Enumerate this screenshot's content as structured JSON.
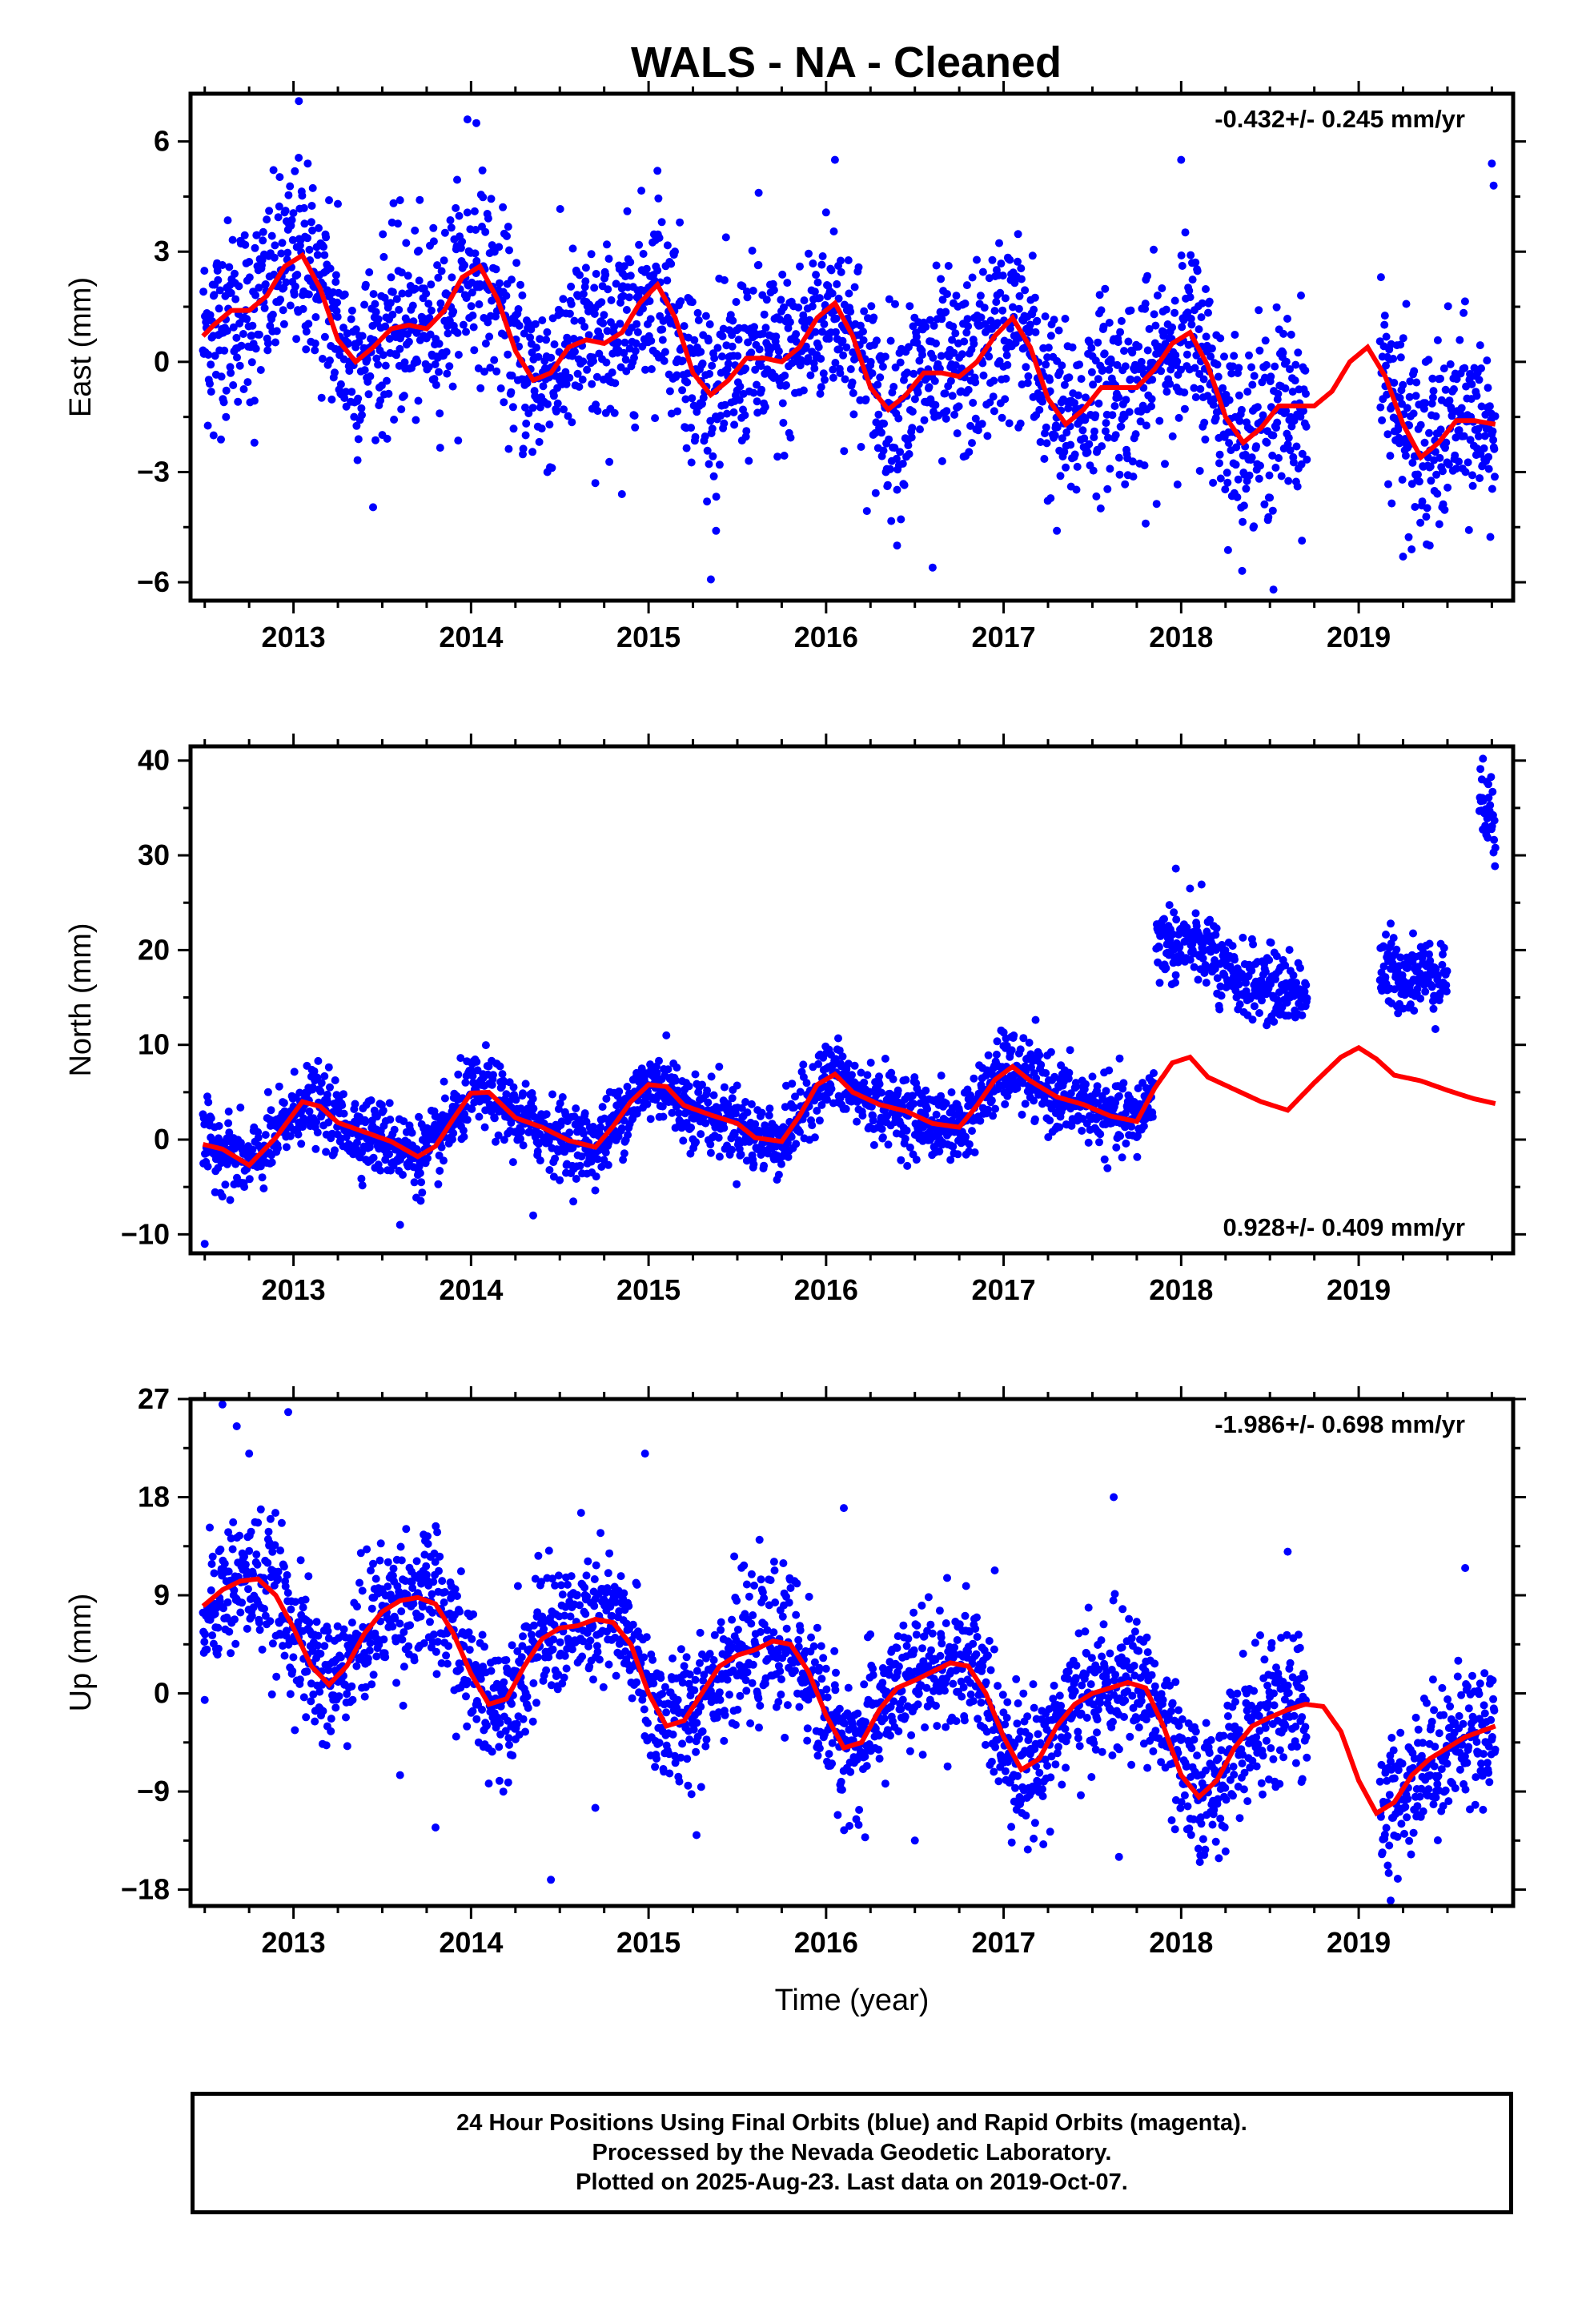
{
  "figure": {
    "title": "WALS  - NA - Cleaned",
    "footer_lines": [
      "24 Hour Positions Using Final Orbits (blue) and Rapid Orbits (magenta).",
      "Processed by the Nevada Geodetic Laboratory.",
      "Plotted on 2025-Aug-23. Last data on 2019-Oct-07."
    ],
    "colors": {
      "points": "#0000ff",
      "fit": "#ff0000",
      "frame": "#000000"
    }
  },
  "chart_data": [
    {
      "type": "scatter",
      "id": "east",
      "ylabel": "East (mm)",
      "xlabel": "",
      "xlim": [
        2012.42,
        2019.87
      ],
      "ylim": [
        -6.5,
        7.3
      ],
      "xticks": [
        2013,
        2014,
        2015,
        2016,
        2017,
        2018,
        2019
      ],
      "yticks": [
        -6,
        -3,
        0,
        3,
        6
      ],
      "rate_label": "-0.432+/- 0.245 mm/yr",
      "rate_position": "top-right",
      "series": [
        {
          "role": "daily-positions",
          "segments": [
            [
              2012.49,
              2018.71
            ],
            [
              2019.12,
              2019.77
            ]
          ],
          "points": [
            [
              2012.55,
              -2.0
            ],
            [
              2012.62,
              -1.5
            ],
            [
              2012.78,
              -2.2
            ],
            [
              2013.03,
              7.1
            ],
            [
              2013.08,
              5.4
            ],
            [
              2013.2,
              4.4
            ],
            [
              2013.25,
              4.3
            ],
            [
              2013.6,
              4.4
            ],
            [
              2013.98,
              6.6
            ],
            [
              2014.03,
              6.5
            ],
            [
              2014.43,
              -3.0
            ],
            [
              2014.7,
              -3.3
            ],
            [
              2014.85,
              -3.6
            ],
            [
              2015.05,
              5.2
            ],
            [
              2015.38,
              -4.6
            ],
            [
              2015.62,
              4.6
            ],
            [
              2016.05,
              5.5
            ],
            [
              2016.4,
              -5.0
            ],
            [
              2016.6,
              -5.6
            ],
            [
              2017.3,
              -4.6
            ],
            [
              2017.8,
              -4.4
            ],
            [
              2018.0,
              5.5
            ],
            [
              2018.52,
              -6.2
            ],
            [
              2019.25,
              -5.3
            ],
            [
              2019.4,
              -5.0
            ],
            [
              2019.75,
              5.4
            ],
            [
              2019.76,
              4.8
            ]
          ],
          "description_of_bands": "daily solution scatter approx. +/-2.5 mm around the seasonal fit; data gap 2018.71-2019.12"
        },
        {
          "role": "seasonal-fit",
          "x": [
            2012.49,
            2012.55,
            2012.65,
            2012.75,
            2012.85,
            2012.95,
            2013.05,
            2013.15,
            2013.25,
            2013.35,
            2013.45,
            2013.55,
            2013.65,
            2013.75,
            2013.85,
            2013.95,
            2014.05,
            2014.15,
            2014.25,
            2014.35,
            2014.45,
            2014.55,
            2014.65,
            2014.75,
            2014.85,
            2014.95,
            2015.05,
            2015.15,
            2015.25,
            2015.35,
            2015.45,
            2015.55,
            2015.65,
            2015.75,
            2015.85,
            2015.95,
            2016.05,
            2016.15,
            2016.25,
            2016.35,
            2016.45,
            2016.55,
            2016.65,
            2016.75,
            2016.85,
            2016.95,
            2017.05,
            2017.15,
            2017.25,
            2017.35,
            2017.45,
            2017.55,
            2017.65,
            2017.75,
            2017.85,
            2017.95,
            2018.05,
            2018.15,
            2018.25,
            2018.35,
            2018.45,
            2018.55,
            2018.65,
            2018.75,
            2018.85,
            2018.95,
            2019.05,
            2019.15,
            2019.25,
            2019.35,
            2019.45,
            2019.55,
            2019.65,
            2019.77
          ],
          "y": [
            0.7,
            1.0,
            1.4,
            1.4,
            1.8,
            2.6,
            2.9,
            2.0,
            0.6,
            0.0,
            0.4,
            0.9,
            1.0,
            0.9,
            1.4,
            2.3,
            2.6,
            1.7,
            0.3,
            -0.5,
            -0.3,
            0.4,
            0.6,
            0.5,
            0.8,
            1.6,
            2.1,
            1.2,
            -0.3,
            -0.9,
            -0.5,
            0.1,
            0.1,
            0.0,
            0.4,
            1.2,
            1.6,
            0.7,
            -0.7,
            -1.3,
            -0.9,
            -0.3,
            -0.3,
            -0.4,
            0.0,
            0.7,
            1.2,
            0.4,
            -1.0,
            -1.7,
            -1.3,
            -0.7,
            -0.7,
            -0.7,
            -0.2,
            0.5,
            0.8,
            -0.1,
            -1.5,
            -2.2,
            -1.8,
            -1.2,
            -1.2,
            -1.2,
            -0.8,
            0.0,
            0.4,
            -0.4,
            -1.7,
            -2.6,
            -2.2,
            -1.6,
            -1.6,
            -1.7
          ]
        }
      ]
    },
    {
      "type": "scatter",
      "id": "north",
      "ylabel": "North (mm)",
      "xlabel": "",
      "xlim": [
        2012.42,
        2019.87
      ],
      "ylim": [
        -12.0,
        41.5
      ],
      "xticks": [
        2013,
        2014,
        2015,
        2016,
        2017,
        2018,
        2019
      ],
      "yticks": [
        -10,
        0,
        10,
        20,
        30,
        40
      ],
      "rate_label": "0.928+/- 0.409 mm/yr",
      "rate_position": "bottom-right",
      "series": [
        {
          "role": "daily-positions",
          "segments": [
            [
              2012.49,
              2017.85
            ],
            [
              2017.86,
              2018.71
            ],
            [
              2019.12,
              2019.5
            ],
            [
              2019.68,
              2019.77
            ]
          ],
          "points": [
            [
              2012.5,
              -11.0
            ],
            [
              2013.0,
              3.5
            ],
            [
              2013.6,
              -9.0
            ],
            [
              2014.35,
              -8.0
            ],
            [
              2015.1,
              11.0
            ],
            [
              2016.05,
              8.5
            ],
            [
              2017.0,
              11.3
            ],
            [
              2017.97,
              28.6
            ],
            [
              2018.05,
              26.5
            ],
            [
              2019.18,
              22.8
            ],
            [
              2019.7,
              40.2
            ],
            [
              2019.73,
              37.5
            ],
            [
              2019.77,
              30.8
            ]
          ],
          "description_of_bands": "pre-2017.85 scatter ~ +/-3 mm around the fit; 2017.85-2018.71 offset cluster 13-26 mm; 2019.12-2019.5 cluster 15-21 mm; 2019.68-2019.77 cluster 30-40 mm"
        },
        {
          "role": "seasonal-fit",
          "x": [
            2012.49,
            2012.6,
            2012.75,
            2012.9,
            2013.05,
            2013.15,
            2013.25,
            2013.4,
            2013.55,
            2013.7,
            2013.8,
            2013.9,
            2014.0,
            2014.1,
            2014.25,
            2014.4,
            2014.55,
            2014.7,
            2014.8,
            2014.9,
            2015.0,
            2015.1,
            2015.2,
            2015.35,
            2015.5,
            2015.6,
            2015.75,
            2015.85,
            2015.95,
            2016.05,
            2016.15,
            2016.3,
            2016.45,
            2016.6,
            2016.75,
            2016.85,
            2016.95,
            2017.05,
            2017.15,
            2017.3,
            2017.45,
            2017.6,
            2017.75,
            2017.85,
            2017.95,
            2018.05,
            2018.15,
            2018.3,
            2018.45,
            2018.6,
            2018.75,
            2018.9,
            2019.0,
            2019.1,
            2019.2,
            2019.35,
            2019.5,
            2019.65,
            2019.77
          ],
          "y": [
            -0.5,
            -1.0,
            -2.7,
            0.2,
            4.0,
            3.5,
            1.8,
            0.8,
            -0.2,
            -1.8,
            -0.7,
            2.2,
            4.9,
            5.0,
            2.3,
            1.3,
            -0.1,
            -0.8,
            1.4,
            4.0,
            5.8,
            5.6,
            3.6,
            2.6,
            1.7,
            0.2,
            -0.2,
            2.5,
            5.8,
            6.9,
            5.0,
            3.7,
            3.0,
            1.7,
            1.3,
            3.6,
            6.3,
            7.7,
            6.2,
            4.5,
            3.7,
            2.5,
            1.9,
            5.4,
            8.1,
            8.7,
            6.6,
            5.3,
            4.0,
            3.1,
            6.0,
            8.7,
            9.7,
            8.5,
            6.8,
            6.2,
            5.2,
            4.3,
            3.8
          ]
        }
      ]
    },
    {
      "type": "scatter",
      "id": "up",
      "ylabel": "Up (mm)",
      "xlabel": "Time (year)",
      "xlim": [
        2012.42,
        2019.87
      ],
      "ylim": [
        -19.5,
        27.0
      ],
      "xticks": [
        2013,
        2014,
        2015,
        2016,
        2017,
        2018,
        2019
      ],
      "yticks": [
        -18,
        -9,
        0,
        9,
        18,
        27
      ],
      "rate_label": "-1.986+/- 0.698 mm/yr",
      "rate_position": "top-right",
      "series": [
        {
          "role": "daily-positions",
          "segments": [
            [
              2012.49,
              2018.71
            ],
            [
              2019.12,
              2019.77
            ]
          ],
          "points": [
            [
              2012.6,
              26.5
            ],
            [
              2012.68,
              24.5
            ],
            [
              2012.75,
              22.0
            ],
            [
              2012.97,
              25.8
            ],
            [
              2012.5,
              -0.6
            ],
            [
              2013.6,
              -7.5
            ],
            [
              2013.8,
              -12.3
            ],
            [
              2014.45,
              -17.1
            ],
            [
              2014.98,
              22.0
            ],
            [
              2014.7,
              -10.5
            ],
            [
              2015.27,
              -13.0
            ],
            [
              2016.1,
              17.0
            ],
            [
              2016.22,
              -13.2
            ],
            [
              2016.5,
              -13.5
            ],
            [
              2017.65,
              -15.0
            ],
            [
              2017.62,
              18.0
            ],
            [
              2018.25,
              -14.5
            ],
            [
              2019.18,
              -19.0
            ],
            [
              2019.22,
              -17.0
            ],
            [
              2019.6,
              11.5
            ],
            [
              2018.6,
              13.0
            ]
          ],
          "description_of_bands": "daily solution scatter approx. +/-5 mm around the seasonal fit; data gap 2018.71-2019.12"
        },
        {
          "role": "seasonal-fit",
          "x": [
            2012.49,
            2012.6,
            2012.7,
            2012.8,
            2012.9,
            2013.0,
            2013.1,
            2013.2,
            2013.3,
            2013.4,
            2013.5,
            2013.6,
            2013.7,
            2013.8,
            2013.9,
            2014.0,
            2014.1,
            2014.2,
            2014.3,
            2014.4,
            2014.5,
            2014.6,
            2014.7,
            2014.8,
            2014.9,
            2015.0,
            2015.1,
            2015.2,
            2015.3,
            2015.4,
            2015.5,
            2015.6,
            2015.7,
            2015.8,
            2015.9,
            2016.0,
            2016.1,
            2016.2,
            2016.3,
            2016.4,
            2016.5,
            2016.6,
            2016.7,
            2016.8,
            2016.9,
            2017.0,
            2017.1,
            2017.2,
            2017.3,
            2017.4,
            2017.5,
            2017.6,
            2017.7,
            2017.8,
            2017.9,
            2018.0,
            2018.1,
            2018.2,
            2018.3,
            2018.4,
            2018.5,
            2018.6,
            2018.7,
            2018.8,
            2018.9,
            2019.0,
            2019.1,
            2019.2,
            2019.3,
            2019.4,
            2019.5,
            2019.6,
            2019.77
          ],
          "y": [
            8.0,
            9.5,
            10.3,
            10.5,
            9.0,
            6.0,
            2.5,
            0.8,
            2.5,
            5.5,
            7.5,
            8.5,
            8.8,
            8.2,
            5.5,
            1.8,
            -1.0,
            -0.5,
            2.5,
            5.0,
            6.0,
            6.2,
            6.8,
            6.5,
            4.5,
            0.0,
            -3.0,
            -2.5,
            0.0,
            2.5,
            3.5,
            4.0,
            4.8,
            4.5,
            2.0,
            -2.0,
            -5.0,
            -4.5,
            -1.5,
            0.5,
            1.2,
            2.0,
            2.8,
            2.5,
            0.0,
            -4.0,
            -7.0,
            -6.0,
            -3.0,
            -1.0,
            0.0,
            0.5,
            1.0,
            0.5,
            -3.0,
            -7.5,
            -9.5,
            -8.0,
            -5.0,
            -3.0,
            -2.2,
            -1.5,
            -1.0,
            -1.2,
            -3.5,
            -8.0,
            -11.0,
            -10.0,
            -7.5,
            -6.0,
            -5.0,
            -4.0,
            -3.0
          ]
        }
      ]
    }
  ]
}
